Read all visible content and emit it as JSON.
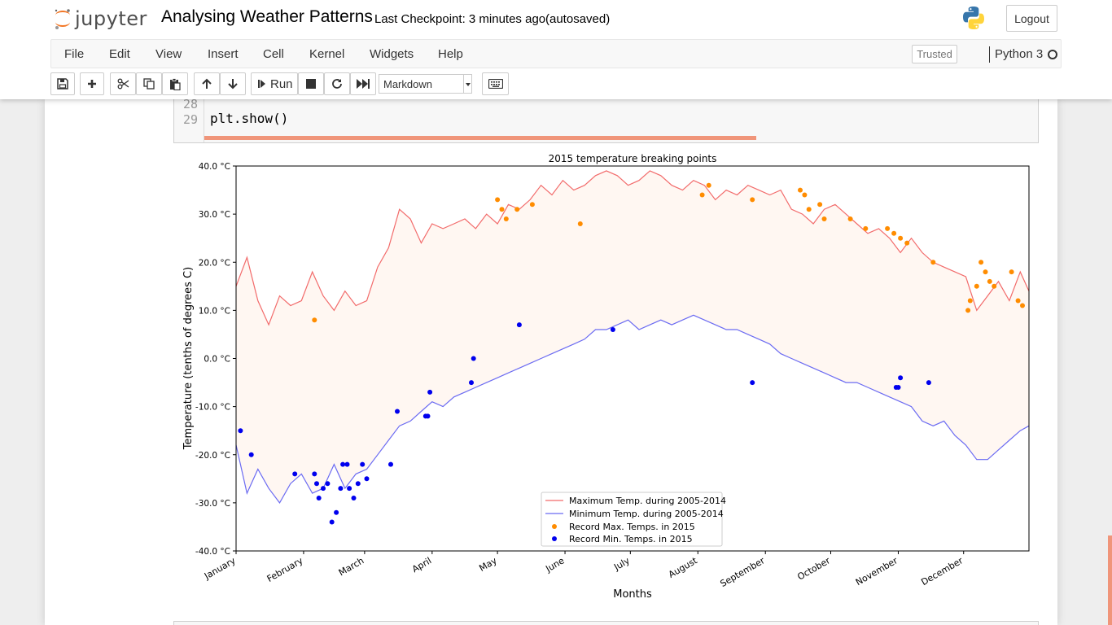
{
  "header": {
    "logo_text": "jupyter",
    "title": "Analysing Weather Patterns",
    "checkpoint": "Last Checkpoint: 3 minutes ago",
    "autosave": "(autosaved)",
    "logout_label": "Logout"
  },
  "menubar": {
    "items": [
      "File",
      "Edit",
      "View",
      "Insert",
      "Cell",
      "Kernel",
      "Widgets",
      "Help"
    ],
    "trusted": "Trusted",
    "kernel": "Python 3"
  },
  "toolbar": {
    "run_label": "Run",
    "cell_type": "Markdown"
  },
  "cell": {
    "line_numbers": [
      "28",
      "29"
    ],
    "code": "plt.show()"
  },
  "colors": {
    "max_line": "#f26b6b",
    "min_line": "#6b6bf2",
    "record_max": "#ff8c00",
    "record_min": "#0000ee",
    "fill": "#fff7f2",
    "accent": "#f0957a"
  },
  "chart_data": {
    "type": "line",
    "title": "2015 temperature breaking points",
    "xlabel": "Months",
    "ylabel": "Temperature (tenths of degrees C)",
    "ylim": [
      -40,
      40
    ],
    "yticks": [
      "40.0 °C",
      "30.0 °C",
      "20.0 °C",
      "10.0 °C",
      "0.0 °C",
      "-10.0 °C",
      "-20.0 °C",
      "-30.0 °C",
      "-40.0 °C"
    ],
    "ytick_values": [
      40,
      30,
      20,
      10,
      0,
      -10,
      -20,
      -30,
      -40
    ],
    "xlim": [
      1,
      365
    ],
    "months": [
      "January",
      "February",
      "March",
      "April",
      "May",
      "June",
      "July",
      "August",
      "September",
      "October",
      "November",
      "December"
    ],
    "month_days": [
      1,
      32,
      60,
      91,
      121,
      152,
      182,
      213,
      244,
      274,
      305,
      335
    ],
    "legend_position": "lower-center",
    "series": [
      {
        "name": "Maximum Temp. during 2005-2014",
        "style": "line",
        "x": [
          1,
          6,
          11,
          16,
          21,
          26,
          31,
          36,
          41,
          46,
          51,
          56,
          61,
          66,
          71,
          76,
          81,
          86,
          91,
          96,
          101,
          106,
          111,
          116,
          121,
          126,
          131,
          136,
          141,
          146,
          151,
          156,
          161,
          166,
          171,
          176,
          181,
          186,
          191,
          196,
          201,
          206,
          211,
          216,
          221,
          226,
          231,
          236,
          241,
          246,
          251,
          256,
          261,
          266,
          271,
          276,
          281,
          286,
          291,
          296,
          301,
          306,
          311,
          316,
          321,
          326,
          331,
          336,
          341,
          346,
          351,
          356,
          361,
          365
        ],
        "values": [
          15,
          21,
          12,
          7,
          13,
          11,
          12,
          18,
          13,
          10,
          14,
          11,
          12,
          19,
          23,
          31,
          29,
          24,
          28,
          27,
          28,
          29,
          27,
          30,
          28,
          32,
          31,
          33,
          36,
          34,
          37,
          35,
          36,
          38,
          39,
          38,
          36,
          37,
          39,
          38,
          36,
          35,
          37,
          36,
          33,
          35,
          34,
          36,
          35,
          34,
          35,
          31,
          30,
          28,
          31,
          32,
          30,
          28,
          26,
          27,
          25,
          22,
          25,
          22,
          20,
          19,
          18,
          17,
          10,
          13,
          16,
          12,
          18,
          14
        ]
      },
      {
        "name": "Minimum Temp. during 2005-2014",
        "style": "line",
        "x": [
          1,
          6,
          11,
          16,
          21,
          26,
          31,
          36,
          41,
          46,
          51,
          56,
          61,
          66,
          71,
          76,
          81,
          86,
          91,
          96,
          101,
          106,
          111,
          116,
          121,
          126,
          131,
          136,
          141,
          146,
          151,
          156,
          161,
          166,
          171,
          176,
          181,
          186,
          191,
          196,
          201,
          206,
          211,
          216,
          221,
          226,
          231,
          236,
          241,
          246,
          251,
          256,
          261,
          266,
          271,
          276,
          281,
          286,
          291,
          296,
          301,
          306,
          311,
          316,
          321,
          326,
          331,
          336,
          341,
          346,
          351,
          356,
          361,
          365
        ],
        "values": [
          -18,
          -28,
          -23,
          -27,
          -30,
          -26,
          -24,
          -28,
          -27,
          -22,
          -27,
          -24,
          -23,
          -20,
          -17,
          -14,
          -13,
          -11,
          -9,
          -10,
          -8,
          -7,
          -6,
          -5,
          -4,
          -3,
          -2,
          -1,
          0,
          1,
          2,
          3,
          4,
          6,
          6,
          7,
          8,
          6,
          7,
          8,
          7,
          8,
          9,
          8,
          7,
          6,
          6,
          5,
          4,
          3,
          1,
          0,
          -1,
          -2,
          -3,
          -4,
          -5,
          -5,
          -6,
          -7,
          -8,
          -9,
          -10,
          -13,
          -14,
          -13,
          -16,
          -18,
          -21,
          -21,
          -19,
          -17,
          -15,
          -14
        ]
      },
      {
        "name": "Record Max. Temps. in 2015",
        "style": "scatter",
        "x": [
          37,
          121,
          123,
          125,
          130,
          137,
          159,
          215,
          218,
          238,
          260,
          262,
          264,
          269,
          271,
          283,
          290,
          300,
          303,
          306,
          309,
          321,
          337,
          338,
          341,
          343,
          345,
          347,
          349,
          357,
          360,
          362
        ],
        "values": [
          8,
          33,
          31,
          29,
          31,
          32,
          28,
          34,
          36,
          33,
          35,
          34,
          31,
          32,
          29,
          29,
          27,
          27,
          26,
          25,
          24,
          20,
          10,
          12,
          15,
          20,
          18,
          16,
          15,
          18,
          12,
          11
        ]
      },
      {
        "name": "Record Min. Temps. in 2015",
        "style": "scatter",
        "x": [
          3,
          8,
          28,
          37,
          38,
          39,
          41,
          43,
          45,
          47,
          49,
          50,
          52,
          53,
          55,
          57,
          59,
          61,
          72,
          75,
          88,
          89,
          90,
          109,
          110,
          131,
          174,
          238,
          304,
          305,
          306,
          319
        ],
        "values": [
          -15,
          -20,
          -24,
          -24,
          -26,
          -29,
          -27,
          -26,
          -34,
          -32,
          -27,
          -22,
          -22,
          -27,
          -29,
          -26,
          -22,
          -25,
          -22,
          -11,
          -12,
          -12,
          -7,
          -5,
          0,
          7,
          6,
          -5,
          -6,
          -6,
          -4,
          -5
        ]
      }
    ]
  }
}
